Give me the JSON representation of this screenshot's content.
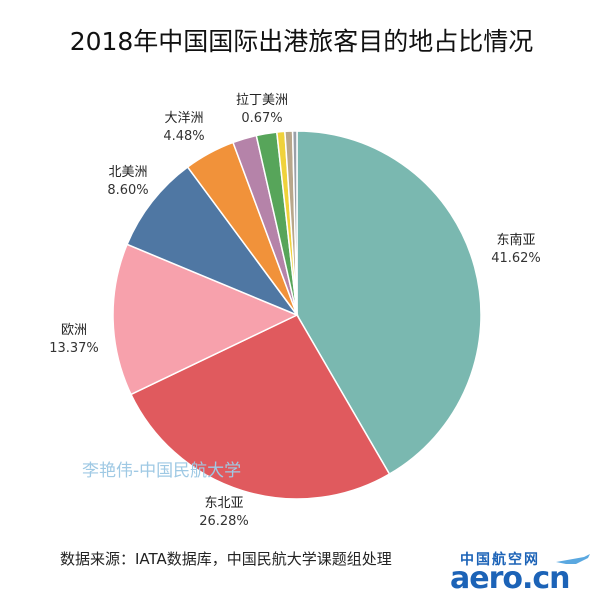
{
  "chart_data": {
    "type": "pie",
    "title": "2018年中国国际出港旅客目的地占比情况",
    "start_angle_deg": 0,
    "direction": "clockwise",
    "slices": [
      {
        "label": "东南亚",
        "value": 41.62,
        "pct_label": "41.62%",
        "color": "#7ab8b0",
        "show_label": true
      },
      {
        "label": "东北亚",
        "value": 26.28,
        "pct_label": "26.28%",
        "color": "#e05a5e",
        "show_label": true
      },
      {
        "label": "欧洲",
        "value": 13.37,
        "pct_label": "13.37%",
        "color": "#f7a1ac",
        "show_label": true
      },
      {
        "label": "北美洲",
        "value": 8.6,
        "pct_label": "8.60%",
        "color": "#4f77a3",
        "show_label": true
      },
      {
        "label": "大洋洲",
        "value": 4.48,
        "pct_label": "4.48%",
        "color": "#f1923a",
        "show_label": true
      },
      {
        "label": "",
        "value": 2.1,
        "pct_label": "",
        "color": "#b583a9",
        "show_label": false
      },
      {
        "label": "",
        "value": 1.8,
        "pct_label": "",
        "color": "#57a55a",
        "show_label": false
      },
      {
        "label": "",
        "value": 0.7,
        "pct_label": "",
        "color": "#f0d23b",
        "show_label": false
      },
      {
        "label": "拉丁美洲",
        "value": 0.67,
        "pct_label": "0.67%",
        "color": "#b8a78b",
        "show_label": true
      },
      {
        "label": "",
        "value": 0.38,
        "pct_label": "",
        "color": "#9aa0a8",
        "show_label": false
      }
    ]
  },
  "watermark": "李艳伟-中国民航大学",
  "source": "数据来源：IATA数据库，中国民航大学课题组处理",
  "logo": {
    "cn": "中国航空网",
    "en": "aero.cn"
  }
}
